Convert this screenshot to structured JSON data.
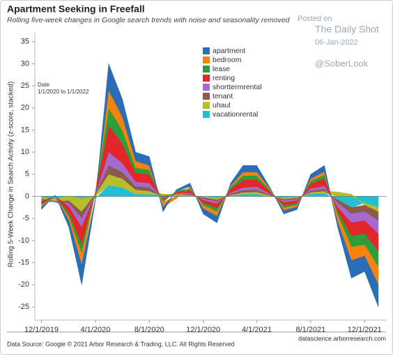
{
  "chart_data": {
    "type": "stacked_area",
    "title": "Apartment Seeking in Freefall",
    "subtitle": "Rolling five-week changes in Google search trends with noise and seasonality removed",
    "y_label": "Rolling 5-Week Change in Search Activity (z-score, stacked)",
    "filter_title": "Date",
    "filter_value": "1/1/2020 to 1/1/2022",
    "watermark": [
      "Posted on",
      "The Daily Shot",
      "06-Jan-2022",
      "@SoberLook"
    ],
    "source": "Data Source: Google © 2021 Arbor Research & Trading, LLC. All Rights Reserved",
    "source_url": "datascience.arborresearch.com",
    "x": [
      "12/1/2019",
      "1/1/2020",
      "2/1/2020",
      "3/1/2020",
      "4/1/2020",
      "5/1/2020",
      "6/1/2020",
      "7/1/2020",
      "8/1/2020",
      "9/1/2020",
      "10/1/2020",
      "11/1/2020",
      "12/1/2020",
      "1/1/2021",
      "2/1/2021",
      "3/1/2021",
      "4/1/2021",
      "5/1/2021",
      "6/1/2021",
      "7/1/2021",
      "8/1/2021",
      "9/1/2021",
      "10/1/2021",
      "11/1/2021",
      "12/1/2021",
      "1/1/2022"
    ],
    "xlim": [
      "11/16/2019",
      "1/20/2022"
    ],
    "xticks": [
      "12/1/2019",
      "4/1/2020",
      "8/1/2020",
      "12/1/2020",
      "4/1/2021",
      "8/1/2021",
      "12/1/2021"
    ],
    "ylim": [
      -28,
      37
    ],
    "yticks": [
      -25,
      -20,
      -15,
      -10,
      -5,
      0,
      5,
      10,
      15,
      20,
      25,
      30,
      35
    ],
    "grid": false,
    "series": [
      {
        "name": "apartment",
        "color": "#2a6fb5",
        "values": [
          -0.6,
          0.2,
          -1.5,
          -4.5,
          -0.5,
          6,
          4,
          2,
          2,
          -1,
          0.3,
          0.8,
          -1.2,
          -1.5,
          0.6,
          1.5,
          1.5,
          0.3,
          -0.8,
          -0.6,
          1,
          1.4,
          -1.2,
          -4,
          -3.5,
          -5
        ]
      },
      {
        "name": "bedroom",
        "color": "#f7830f",
        "values": [
          -0.4,
          0.1,
          -0.8,
          -2.5,
          0,
          4,
          3,
          1.5,
          1,
          -1.2,
          -0.5,
          0.4,
          -0.8,
          -1,
          0.3,
          0.8,
          0.8,
          0.3,
          -0.6,
          -0.4,
          0.5,
          0.8,
          -1.5,
          -3,
          -2.5,
          -4
        ]
      },
      {
        "name": "lease",
        "color": "#2f9e38",
        "values": [
          -0.3,
          0,
          -0.8,
          -2,
          0,
          4,
          3,
          1.2,
          1,
          -0.5,
          0.2,
          0.4,
          -0.5,
          -0.8,
          0.4,
          1,
          0.9,
          0.3,
          -0.5,
          -0.4,
          0.6,
          0.8,
          -0.8,
          -2.5,
          -2.5,
          -3.5
        ]
      },
      {
        "name": "renting",
        "color": "#e3262a",
        "values": [
          -0.6,
          0,
          -1.5,
          -4,
          0.5,
          6,
          4.5,
          2,
          2,
          -0.3,
          0.3,
          0.6,
          -0.6,
          -1,
          0.8,
          1.7,
          1.6,
          0.5,
          -0.7,
          -0.6,
          1.1,
          1.6,
          -1,
          -3,
          -3,
          -4
        ]
      },
      {
        "name": "shorttermrental",
        "color": "#a36bd1",
        "values": [
          -0.3,
          -0.1,
          -0.8,
          -2,
          0,
          3,
          2,
          1,
          1,
          -0.3,
          0.1,
          0.3,
          -0.3,
          -0.5,
          0.3,
          0.6,
          0.7,
          0.2,
          -0.4,
          -0.3,
          0.5,
          0.7,
          -1,
          -2,
          -2,
          -3
        ]
      },
      {
        "name": "tenant",
        "color": "#8c5b4a",
        "values": [
          -0.2,
          -0.1,
          -0.6,
          -1.5,
          0,
          2,
          1.5,
          0.8,
          0.8,
          -0.2,
          0.1,
          0.2,
          -0.3,
          -0.4,
          0.3,
          0.5,
          0.5,
          0.2,
          -0.3,
          -0.3,
          0.4,
          0.5,
          -0.7,
          -1.5,
          -1.5,
          -2
        ]
      },
      {
        "name": "uhaul",
        "color": "#b8bd2c",
        "values": [
          -0.3,
          -0.5,
          -1,
          -3,
          0.5,
          2.5,
          2,
          1,
          0.7,
          0.2,
          0.3,
          0.2,
          -0.2,
          -0.4,
          0.2,
          0.4,
          0.5,
          0.2,
          -0.3,
          -0.2,
          0.3,
          0.5,
          1,
          0.5,
          -0.5,
          -1
        ]
      },
      {
        "name": "vacationrental",
        "color": "#22bfd4",
        "values": [
          -0.3,
          -0.6,
          0,
          -0.5,
          -0.5,
          2.5,
          2,
          0.5,
          0.5,
          0.3,
          0.2,
          0.1,
          -0.1,
          -0.4,
          0.1,
          0.5,
          0.5,
          0,
          -0.4,
          -0.2,
          0.6,
          0.7,
          -0.8,
          -2.5,
          -1.5,
          -2.5
        ]
      }
    ]
  }
}
